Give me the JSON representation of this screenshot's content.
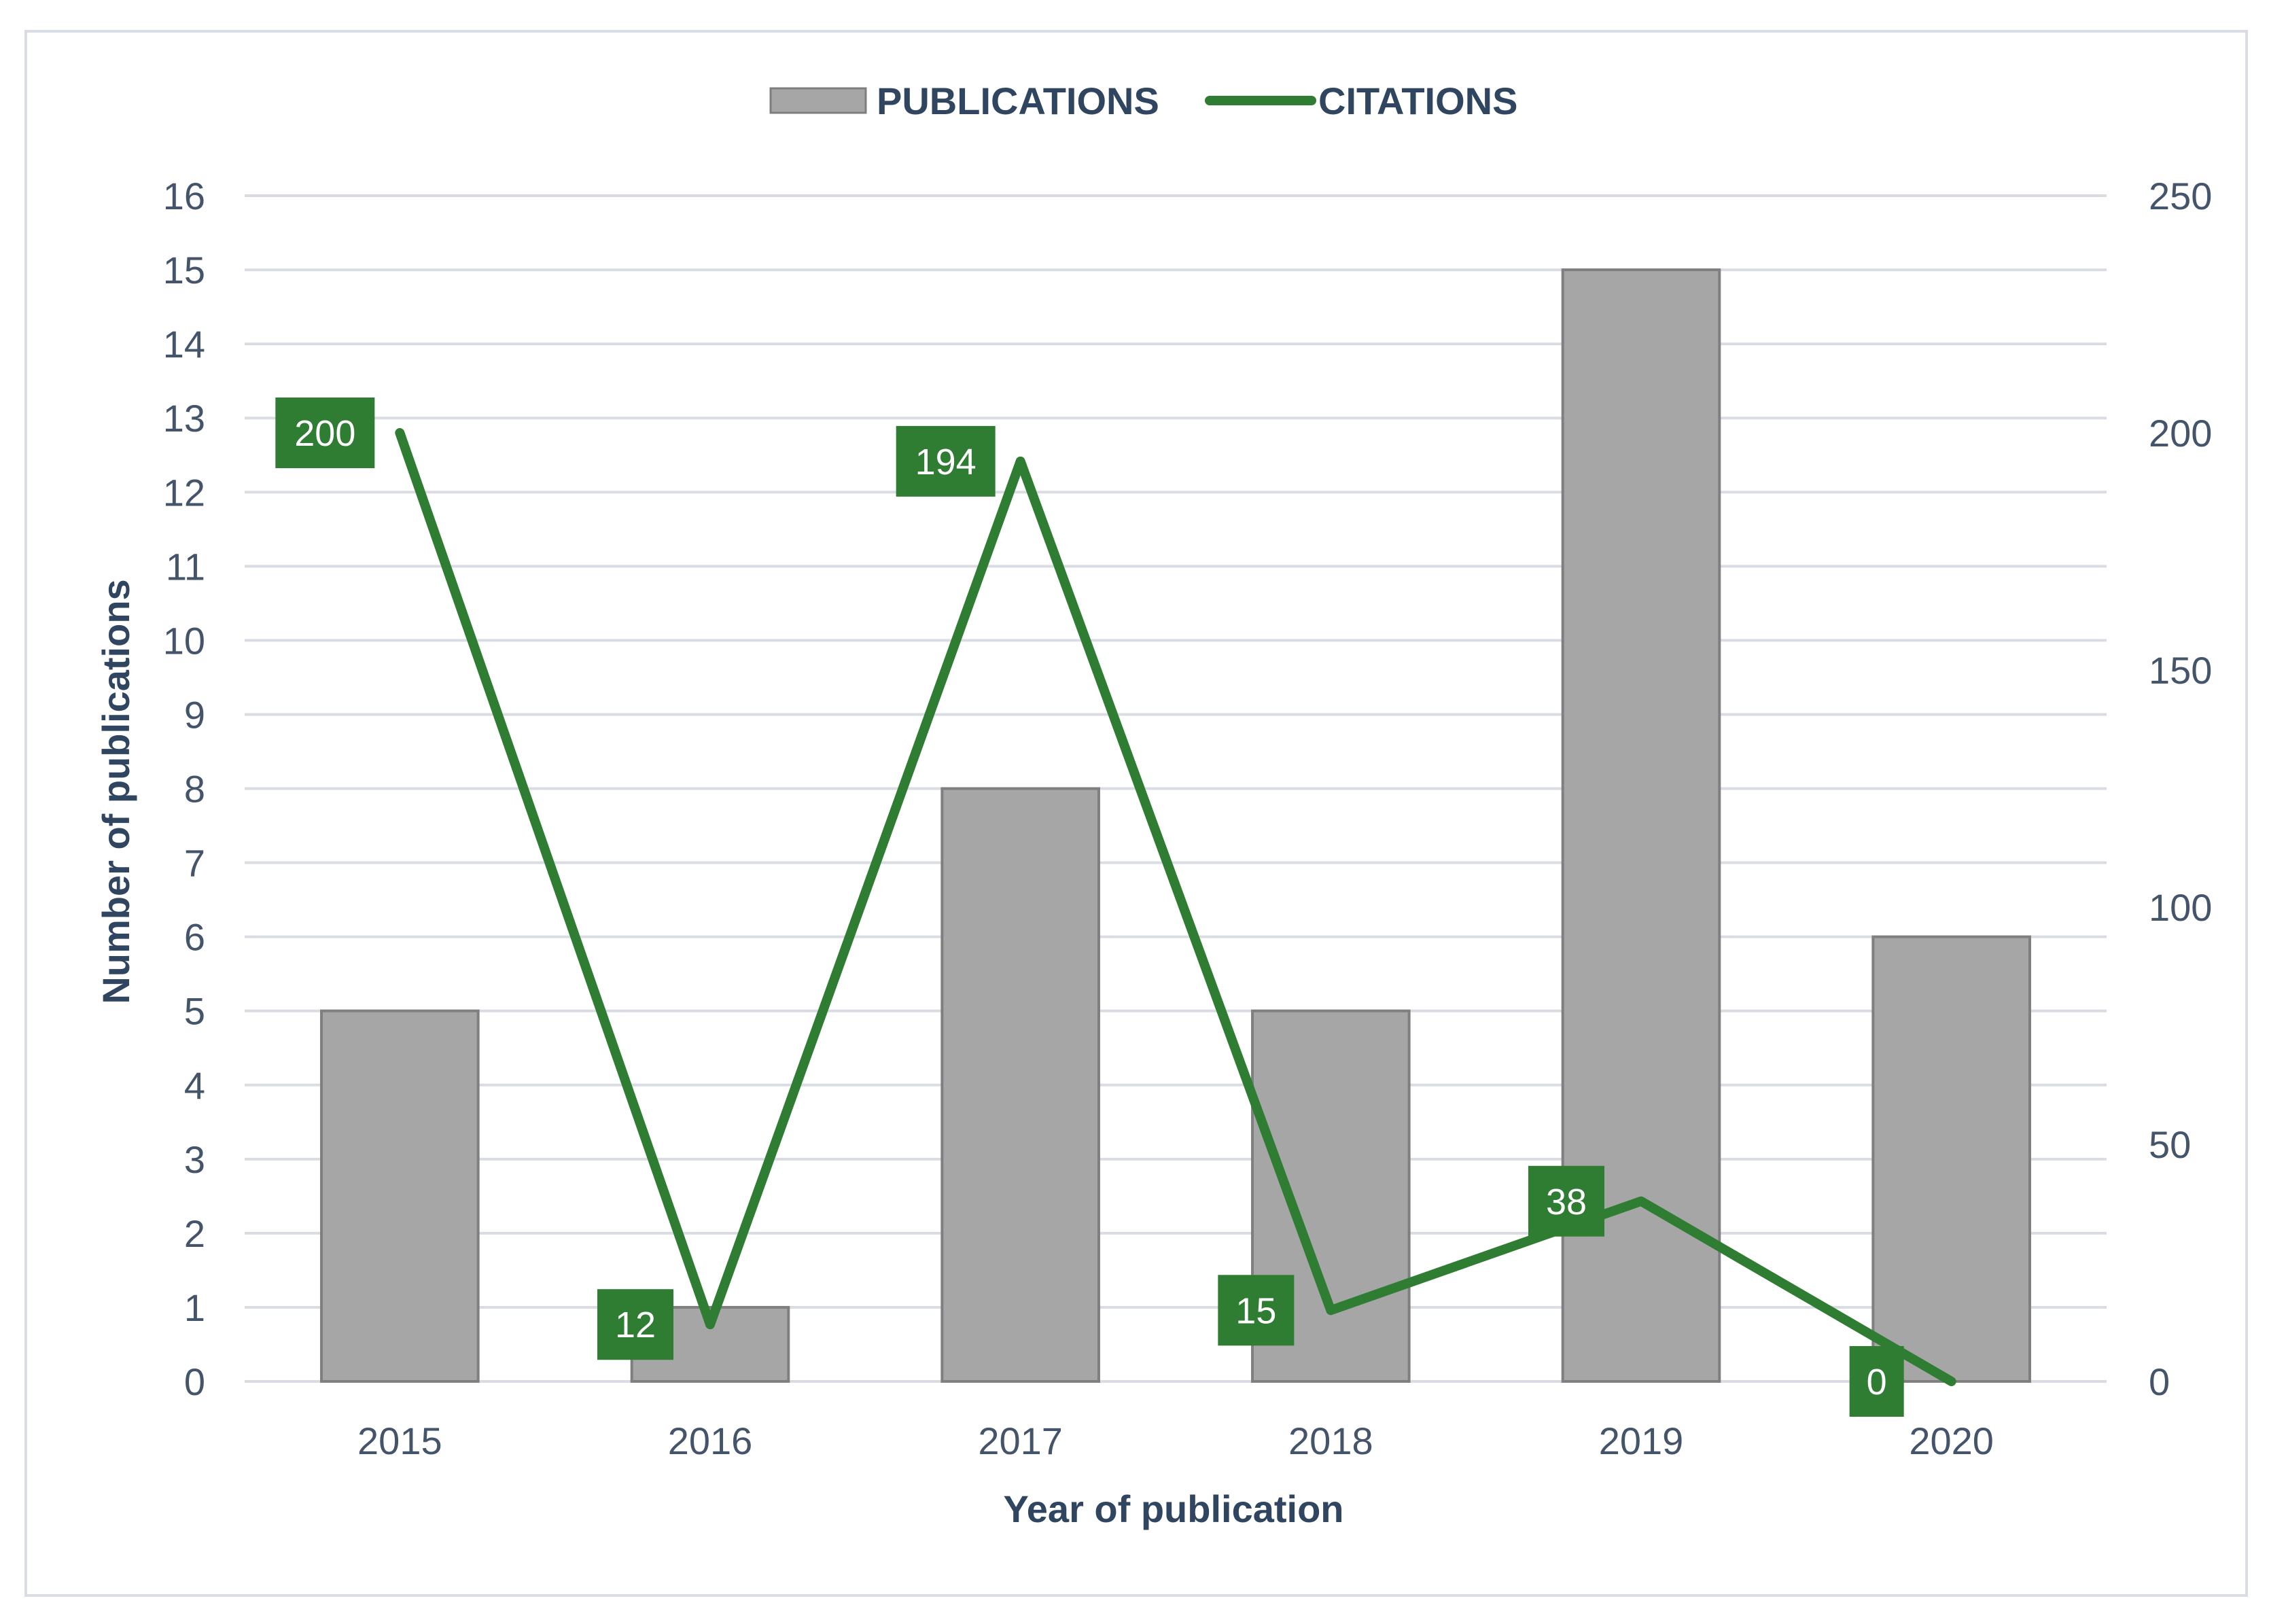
{
  "chart_data": {
    "type": "bar",
    "categories": [
      "2015",
      "2016",
      "2017",
      "2018",
      "2019",
      "2020"
    ],
    "series": [
      {
        "name": "PUBLICATIONS",
        "type": "bar",
        "axis": "left",
        "color": "#a6a6a6",
        "values": [
          5,
          1,
          8,
          5,
          15,
          6
        ]
      },
      {
        "name": "CITATIONS",
        "type": "line",
        "axis": "right",
        "color": "#2e7d32",
        "values": [
          200,
          12,
          194,
          15,
          38,
          0
        ]
      }
    ],
    "title": "",
    "xlabel": "Year of publication",
    "ylabel": "Number of publications",
    "y2label": "",
    "ylim": [
      0,
      16
    ],
    "y2lim": [
      0,
      250
    ],
    "yticks": [
      0,
      1,
      2,
      3,
      4,
      5,
      6,
      7,
      8,
      9,
      10,
      11,
      12,
      13,
      14,
      15,
      16
    ],
    "y2ticks": [
      0,
      50,
      100,
      150,
      200,
      250
    ],
    "grid": true,
    "legend_position": "top-center",
    "data_labels": "CITATIONS"
  }
}
